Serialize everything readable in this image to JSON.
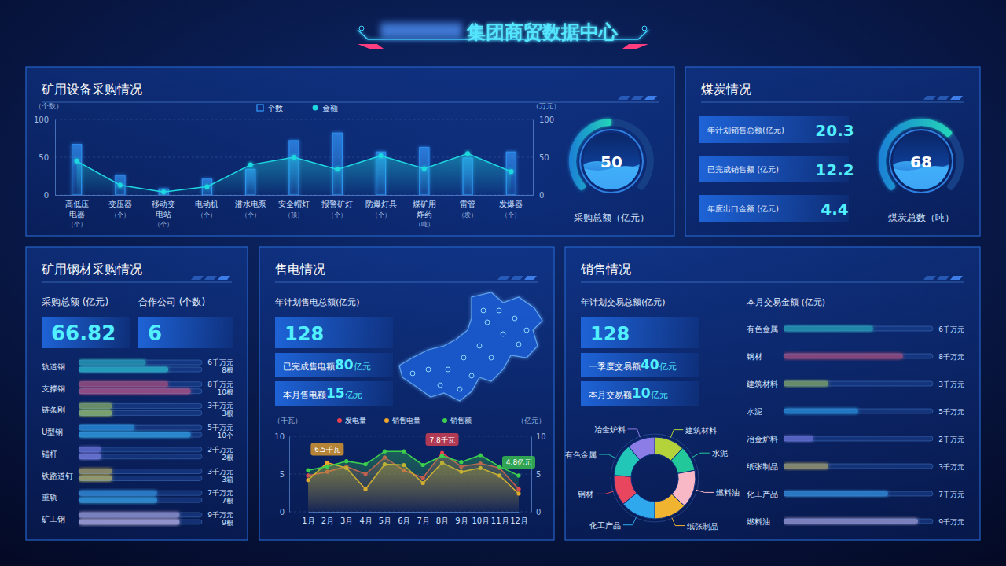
{
  "header": {
    "title": "集团商贸数据中心"
  },
  "panels": {
    "coal": {
      "title": "煤炭情况",
      "kpis": [
        {
          "label": "年计划销售总额(亿元)",
          "value": 20.3
        },
        {
          "label": "已完成销售额 (亿元)",
          "value": 12.2
        },
        {
          "label": "年度出口金额 (亿元)",
          "value": 4.4
        }
      ]
    },
    "steel": {
      "title": "矿用钢材采购情况",
      "kpis": [
        {
          "label": "采购总额 (亿元)",
          "value": 66.82
        },
        {
          "label": "合作公司 (个数)",
          "value": 6
        }
      ]
    },
    "power": {
      "title": "售电情况",
      "kpi": {
        "label": "年计划售电总额(亿元)",
        "value": 128
      },
      "lines": [
        {
          "prefix": "已完成售电额",
          "value": 80,
          "unit": "亿元"
        },
        {
          "prefix": "本月售电额",
          "value": 15,
          "unit": "亿元"
        }
      ]
    },
    "sales": {
      "title": "销售情况",
      "kpi": {
        "label": "年计划交易总额(亿元)",
        "value": 128
      },
      "lines": [
        {
          "prefix": "一季度交易额",
          "value": 40,
          "unit": "亿元"
        },
        {
          "prefix": "本月交易额",
          "value": 10,
          "unit": "亿元"
        }
      ]
    }
  },
  "chart_data": [
    {
      "type": "bar",
      "title": "矿用设备采购情况",
      "categories": [
        "高低压电器",
        "变压器",
        "移动变电站",
        "电动机",
        "潜水电泵",
        "安全帽灯",
        "报警矿灯",
        "防爆灯具",
        "煤矿用炸药",
        "雷管",
        "发爆器"
      ],
      "category_units": [
        "（个）",
        "（个）",
        "（个）",
        "（个）",
        "（个）",
        "（顶）",
        "（个）",
        "（个）",
        "（吨）",
        "（发）",
        "（个）"
      ],
      "ylabel": "（个数）",
      "y2label": "（万元）",
      "ylim": [
        0,
        100
      ],
      "yticks": [
        0,
        50,
        100
      ],
      "y2lim": [
        0,
        100
      ],
      "y2ticks": [
        0,
        50,
        100
      ],
      "grid": true,
      "legend": "top",
      "series": [
        {
          "name": "个数",
          "type": "bar",
          "color": "#2f8df0",
          "values": [
            67,
            26,
            8,
            21,
            34,
            72,
            82,
            57,
            63,
            49,
            57
          ]
        },
        {
          "name": "金额",
          "type": "line",
          "axis": "y2",
          "color": "#1fd8e0",
          "marker": "circle",
          "values": [
            45,
            13,
            4,
            11,
            40,
            50,
            34,
            52,
            35,
            55,
            31
          ]
        }
      ]
    },
    {
      "type": "gauge",
      "title": "采购总额（亿元）",
      "value": 50,
      "ylim": [
        0,
        100
      ],
      "color": "#22d6b8",
      "tick_labels": false
    },
    {
      "type": "gauge",
      "title": "煤炭总数（吨）",
      "value": 68,
      "ylim": [
        0,
        100
      ],
      "color": "#22d6b8",
      "tick_labels": false
    },
    {
      "type": "bar",
      "orientation": "horizontal",
      "categories": [
        "轨道钢",
        "支撑钢",
        "链条刚",
        "U型钢",
        "锚杆",
        "铁路道钉",
        "重轨",
        "矿工钢"
      ],
      "colors": [
        "#22c7b8",
        "#e8455e",
        "#b4d23a",
        "#28a8ee",
        "#8c7ce6",
        "#e8c23c",
        "#34a6f0",
        "#d8b8e0"
      ],
      "xlim": [
        0,
        11
      ],
      "tick_labels": false,
      "data_labels": true,
      "series": [
        {
          "values": [
            6,
            8,
            3,
            5,
            2,
            3,
            7,
            9
          ],
          "value_labels": [
            "6千万元",
            "8千万元",
            "3千万元",
            "5千万元",
            "2千万元",
            "3千万元",
            "7千万元",
            "9千万元"
          ]
        },
        {
          "values": [
            8,
            10,
            3,
            10,
            2,
            3,
            7,
            9
          ],
          "value_labels": [
            "8根",
            "10根",
            "3根",
            "10个",
            "2根",
            "3箱",
            "7根",
            "9根"
          ]
        }
      ]
    },
    {
      "type": "line",
      "ylabel": "（千瓦）",
      "y2label": "（亿元）",
      "categories": [
        "1月",
        "2月",
        "3月",
        "4月",
        "5月",
        "6月",
        "7月",
        "8月",
        "9月",
        "10月",
        "11月",
        "12月"
      ],
      "ylim": [
        0,
        10
      ],
      "yticks": [
        0,
        5,
        10
      ],
      "y2lim": [
        0,
        10
      ],
      "y2ticks": [
        0,
        5,
        10
      ],
      "grid": true,
      "legend": "top",
      "marker": "circle",
      "series": [
        {
          "name": "发电量",
          "color": "#e8414f",
          "values": [
            4.8,
            5.3,
            6.0,
            5.0,
            7.2,
            5.5,
            4.5,
            7.8,
            6.0,
            6.4,
            5.8,
            3.0
          ]
        },
        {
          "name": "销售电量",
          "color": "#f0a62a",
          "values": [
            4.2,
            6.5,
            5.8,
            3.0,
            6.3,
            6.2,
            3.8,
            6.5,
            5.3,
            5.8,
            4.8,
            2.4
          ]
        },
        {
          "name": "销售额",
          "color": "#3ccf4e",
          "axis": "y2",
          "values": [
            5.5,
            6.0,
            6.7,
            6.3,
            8.0,
            8.0,
            6.2,
            7.4,
            6.6,
            7.5,
            6.0,
            4.8
          ]
        }
      ],
      "annotations": [
        {
          "text": "6.5千瓦",
          "series": 1,
          "index": 1
        },
        {
          "text": "7.8千瓦",
          "series": 0,
          "index": 7
        },
        {
          "text": "4.8亿元",
          "series": 2,
          "index": 11
        }
      ]
    },
    {
      "type": "bar",
      "orientation": "horizontal",
      "title": "本月交易金额 (亿元)",
      "categories": [
        "有色金属",
        "钢材",
        "建筑材料",
        "水泥",
        "冶金炉料",
        "纸张制品",
        "化工产品",
        "燃料油"
      ],
      "values": [
        6,
        8,
        3,
        5,
        2,
        3,
        7,
        9
      ],
      "value_labels": [
        "6千万元",
        "8千万元",
        "3千万元",
        "5千万元",
        "2千万元",
        "3千万元",
        "7千万元",
        "9千万元"
      ],
      "colors": [
        "#22c7b8",
        "#e8455e",
        "#b4d23a",
        "#28a8ee",
        "#8c7ce6",
        "#e8c23c",
        "#34a6f0",
        "#d8b8e0"
      ],
      "xlim": [
        0,
        10
      ],
      "tick_labels": false,
      "data_labels": true
    },
    {
      "type": "pie",
      "categories": [
        "建筑材料",
        "水泥",
        "燃料油",
        "纸张制品",
        "化工产品",
        "钢材",
        "有色金属",
        "冶金炉料"
      ],
      "values": [
        12,
        10,
        15,
        13,
        14,
        12,
        13,
        11
      ],
      "colors": [
        "#b4d23a",
        "#22c79a",
        "#f9b8c6",
        "#f0b430",
        "#2fa8ee",
        "#e8455e",
        "#22c7b8",
        "#8c7ce6"
      ]
    }
  ]
}
